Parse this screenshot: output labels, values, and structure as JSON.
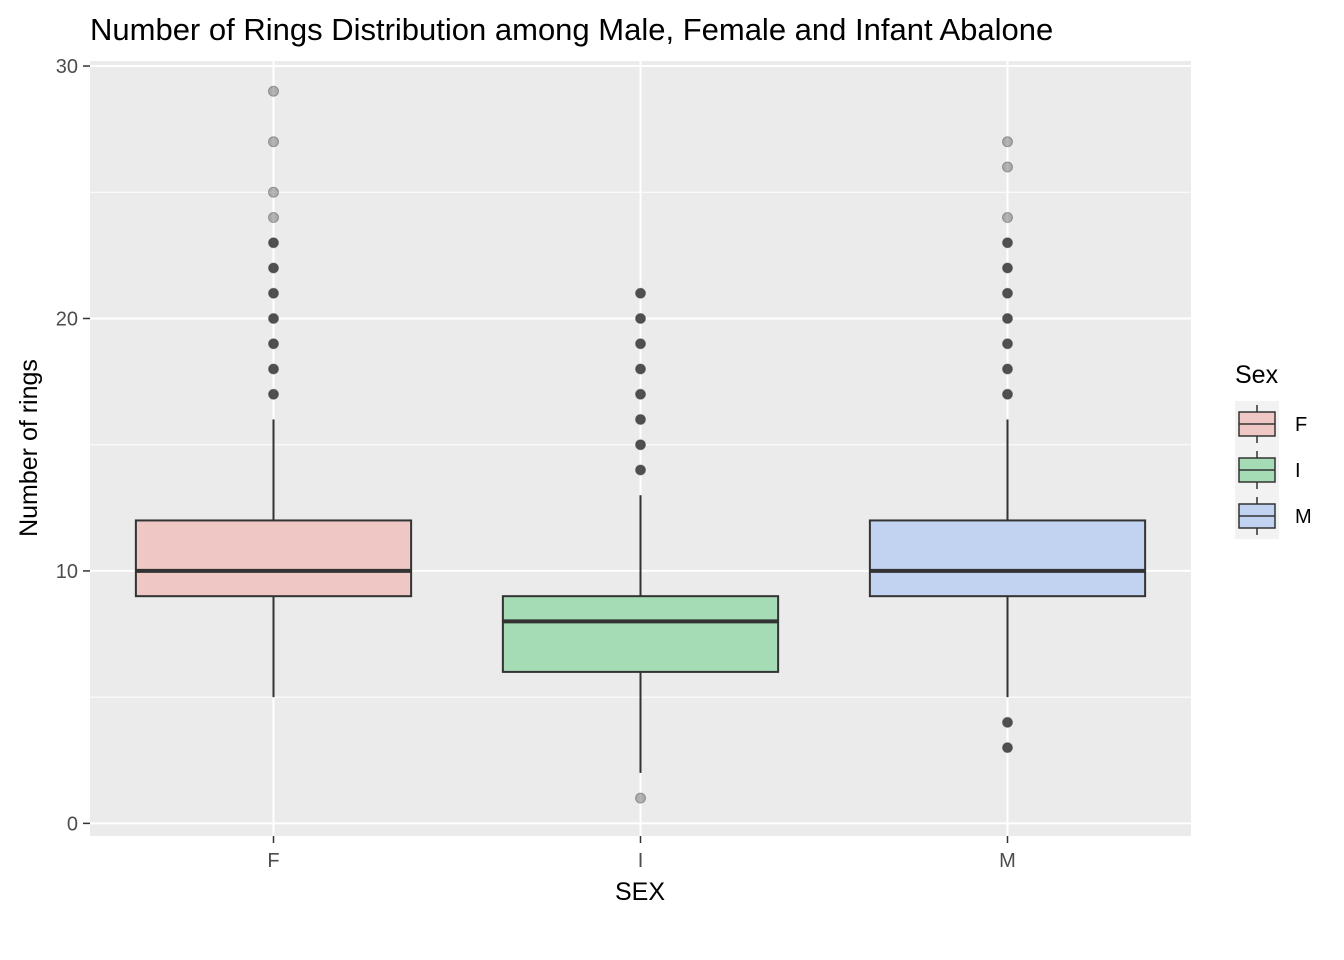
{
  "chart_data": {
    "type": "boxplot",
    "title": "Number of Rings Distribution among Male, Female and Infant Abalone",
    "xlabel": "SEX",
    "ylabel": "Number of rings",
    "categories": [
      "F",
      "I",
      "M"
    ],
    "ylim": [
      -0.5,
      30.2
    ],
    "yticks": [
      0,
      10,
      20,
      30
    ],
    "grid": true,
    "legend": {
      "title": "Sex",
      "position": "right",
      "entries": [
        "F",
        "I",
        "M"
      ]
    },
    "series": [
      {
        "category": "F",
        "color": "#F8766D",
        "whisker_low": 5,
        "q1": 9,
        "median": 10,
        "q3": 12,
        "whisker_high": 16,
        "outliers": [
          17,
          18,
          19,
          20,
          21,
          22,
          23,
          24,
          25,
          27,
          29
        ]
      },
      {
        "category": "I",
        "color": "#00BA38",
        "whisker_low": 2,
        "q1": 6,
        "median": 8,
        "q3": 9,
        "whisker_high": 13,
        "outliers": [
          1,
          14,
          15,
          16,
          17,
          18,
          19,
          20,
          21
        ]
      },
      {
        "category": "M",
        "color": "#619CFF",
        "whisker_low": 5,
        "q1": 9,
        "median": 10,
        "q3": 12,
        "whisker_high": 16,
        "outliers": [
          3,
          4,
          17,
          18,
          19,
          20,
          21,
          22,
          23,
          24,
          26,
          27
        ]
      }
    ]
  }
}
